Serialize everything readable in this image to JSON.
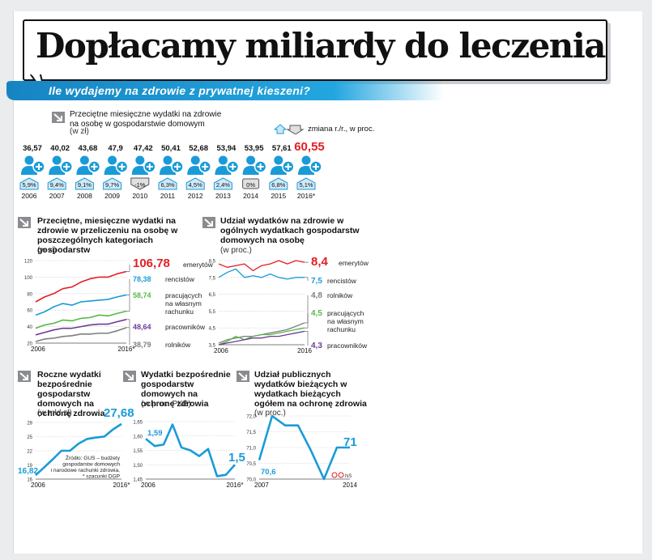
{
  "headline": "Dopłacamy miliardy   do leczenia",
  "banner": "Ile wydajemy na zdrowie z prywatnej kieszeni?",
  "colors": {
    "blue": "#1a9bd7",
    "red": "#e31e24",
    "green": "#57b847",
    "purple": "#6d3b93",
    "gray": "#7c7e81",
    "dark": "#3a3a3a",
    "lightblue": "#cfe9f7"
  },
  "sec1": {
    "title": "Przeciętne miesięczne wydatki na zdrowie na osobę w gospodarstwie domowym",
    "unit": "(w zł)",
    "legend": "zmiana r./r., w proc.",
    "items": [
      {
        "year": "2006",
        "value": "36,57",
        "change": "5,9%",
        "dir": "up"
      },
      {
        "year": "2007",
        "value": "40,02",
        "change": "9,4%",
        "dir": "up"
      },
      {
        "year": "2008",
        "value": "43,68",
        "change": "9,1%",
        "dir": "up"
      },
      {
        "year": "2009",
        "value": "47,9",
        "change": "9,7%",
        "dir": "up"
      },
      {
        "year": "2010",
        "value": "47,42",
        "change": "-1%",
        "dir": "down"
      },
      {
        "year": "2011",
        "value": "50,41",
        "change": "6,3%",
        "dir": "up"
      },
      {
        "year": "2012",
        "value": "52,68",
        "change": "4,5%",
        "dir": "up"
      },
      {
        "year": "2013",
        "value": "53,94",
        "change": "2,4%",
        "dir": "up"
      },
      {
        "year": "2014",
        "value": "53,95",
        "change": "0%",
        "dir": "flat"
      },
      {
        "year": "2015",
        "value": "57,61",
        "change": "6,8%",
        "dir": "up"
      },
      {
        "year": "2016*",
        "value": "60,55",
        "change": "5,1%",
        "dir": "up",
        "highlight": true
      }
    ]
  },
  "chart_data": [
    {
      "id": "c1",
      "type": "line",
      "title": "Przeciętne, miesięczne wydatki na zdrowie w przeliczeniu na osobę w poszczególnych kategoriach gospodarstw",
      "unit": "(w zł)",
      "ylim": [
        20,
        120
      ],
      "yticks": [
        "20",
        "40",
        "60",
        "80",
        "100",
        "120"
      ],
      "xlabels": [
        "2006",
        "2016*"
      ],
      "x": [
        0,
        1,
        2,
        3,
        4,
        5,
        6,
        7,
        8,
        9,
        10
      ],
      "series": [
        {
          "name": "emerytów",
          "color": "#e31e24",
          "label": "106,78",
          "values": [
            70,
            76,
            80,
            86,
            88,
            94,
            98,
            100,
            100,
            104,
            106.78
          ]
        },
        {
          "name": "rencistów",
          "color": "#1a9bd7",
          "label": "78,38",
          "values": [
            54,
            58,
            64,
            68,
            66,
            70,
            71,
            72,
            73,
            76,
            78.38
          ]
        },
        {
          "name": "pracujących na własnym rachunku",
          "color": "#57b847",
          "label": "58,74",
          "values": [
            38,
            42,
            44,
            48,
            47,
            50,
            51,
            54,
            53,
            56,
            58.74
          ]
        },
        {
          "name": "pracowników",
          "color": "#6d3b93",
          "label": "48,64",
          "values": [
            30,
            33,
            36,
            38,
            38,
            40,
            42,
            43,
            43,
            46,
            48.64
          ]
        },
        {
          "name": "rolników",
          "color": "#7c7e81",
          "label": "38,79",
          "values": [
            22,
            25,
            26,
            28,
            29,
            31,
            31,
            32,
            32,
            35,
            38.79
          ]
        }
      ]
    },
    {
      "id": "c2",
      "type": "line",
      "title": "Udział wydatków na zdrowie w ogólnych wydatkach gospodarstw domowych na osobę",
      "unit": "(w proc.)",
      "ylim": [
        3.5,
        8.5
      ],
      "yticks": [
        "3,5",
        "4,5",
        "5,5",
        "6,5",
        "7,5",
        "8,5"
      ],
      "xlabels": [
        "2006",
        "2016"
      ],
      "x": [
        0,
        1,
        2,
        3,
        4,
        5,
        6,
        7,
        8,
        9,
        10
      ],
      "series": [
        {
          "name": "emerytów",
          "color": "#e31e24",
          "label": "8,4",
          "values": [
            8.3,
            8.1,
            8.2,
            8.3,
            7.9,
            8.2,
            8.3,
            8.5,
            8.3,
            8.5,
            8.4
          ]
        },
        {
          "name": "rencistów",
          "color": "#1a9bd7",
          "label": "7,5",
          "values": [
            7.5,
            7.8,
            8.0,
            7.5,
            7.6,
            7.5,
            7.7,
            7.5,
            7.4,
            7.5,
            7.5
          ]
        },
        {
          "name": "rolników",
          "color": "#7c7e81",
          "label": "4,8",
          "values": [
            3.6,
            3.8,
            3.9,
            4.0,
            4.0,
            4.1,
            4.2,
            4.3,
            4.4,
            4.6,
            4.8
          ]
        },
        {
          "name": "pracujących na własnym rachunku",
          "color": "#57b847",
          "label": "4,5",
          "values": [
            3.5,
            3.7,
            4.0,
            3.8,
            4.0,
            4.1,
            4.1,
            4.2,
            4.3,
            4.4,
            4.5
          ]
        },
        {
          "name": "pracowników",
          "color": "#6d3b93",
          "label": "4,3",
          "values": [
            3.5,
            3.6,
            3.7,
            3.8,
            3.9,
            3.9,
            4.0,
            4.0,
            4.1,
            4.2,
            4.3
          ]
        }
      ]
    },
    {
      "id": "c3",
      "type": "line",
      "title": "Roczne wydatki bezpośrednie gospodarstw domowych na ochronę zdrowia",
      "unit": "(w mld zł)",
      "ylim": [
        16,
        28
      ],
      "yticks": [
        "16",
        "19",
        "22",
        "25",
        "28"
      ],
      "xlabels": [
        "2006",
        "2016*"
      ],
      "x": [
        0,
        1,
        2,
        3,
        4,
        5,
        6,
        7,
        8,
        9,
        10
      ],
      "series": [
        {
          "name": "wydatki",
          "color": "#1a9bd7",
          "values": [
            16.82,
            18.5,
            20.2,
            22,
            22,
            23.5,
            24.5,
            24.8,
            25,
            26.5,
            27.68
          ]
        }
      ],
      "first_label": "16,82",
      "last_label": "27,68",
      "note": "Źródło: GUS – budżety gospodarstw domowych i narodowe rachunki zdrowia, * szacunki DGP"
    },
    {
      "id": "c4",
      "type": "line",
      "title": "Wydatki bezpośrednie gospodarstw domowych na ochronę zdrowia",
      "unit": "(w proc. PKB)",
      "ylim": [
        1.45,
        1.65
      ],
      "yticks": [
        "1,45",
        "1,50",
        "1,55",
        "1,60",
        "1,65"
      ],
      "xlabels": [
        "2006",
        "2016*"
      ],
      "x": [
        0,
        1,
        2,
        3,
        4,
        5,
        6,
        7,
        8,
        9,
        10
      ],
      "series": [
        {
          "name": "udział w PKB",
          "color": "#1a9bd7",
          "values": [
            1.59,
            1.565,
            1.57,
            1.64,
            1.56,
            1.55,
            1.53,
            1.555,
            1.46,
            1.465,
            1.5
          ]
        }
      ],
      "first_label": "1,59",
      "last_label": "1,5"
    },
    {
      "id": "c5",
      "type": "line",
      "title": "Udział publicznych wydatków bieżących w wydatkach bieżących ogółem na ochronę zdrowia",
      "unit": "(w proc.)",
      "ylim": [
        70.0,
        72.0
      ],
      "yticks": [
        "70,0",
        "70,5",
        "71,0",
        "71,5",
        "72,0"
      ],
      "xlabels": [
        "2007",
        "2014"
      ],
      "x": [
        0,
        1,
        2,
        3,
        4,
        5,
        6,
        7
      ],
      "series": [
        {
          "name": "udział publiczny",
          "color": "#1a9bd7",
          "values": [
            70.6,
            72.0,
            71.7,
            71.7,
            70.9,
            70.0,
            71.0,
            71.0
          ]
        }
      ],
      "first_label": "70,6",
      "last_label": "71",
      "logo": "NS"
    }
  ]
}
